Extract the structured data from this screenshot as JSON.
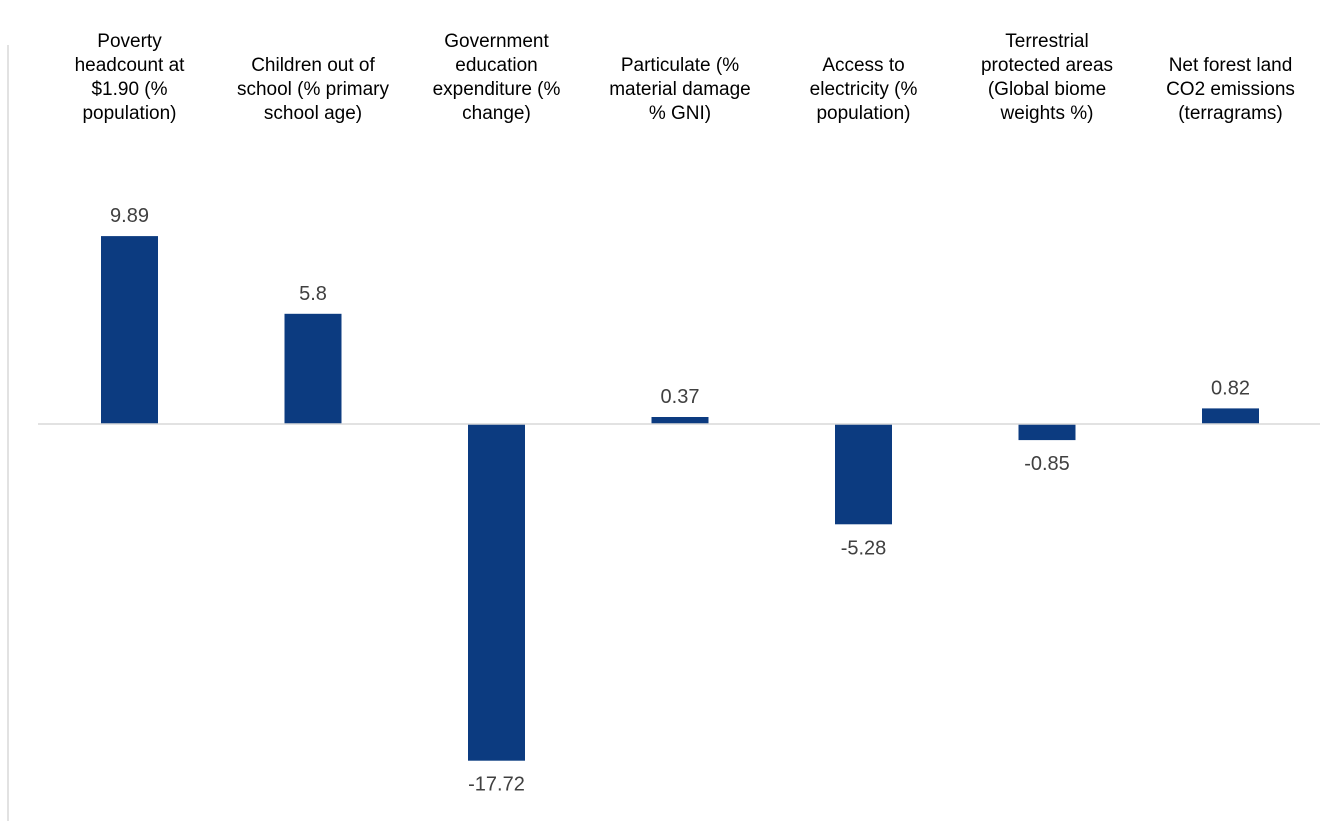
{
  "chart_data": {
    "type": "bar",
    "categories": [
      [
        "Poverty",
        "headcount at",
        "$1.90 (%",
        "population)"
      ],
      [
        "Children out of",
        "school (% primary",
        "school age)"
      ],
      [
        "Government",
        "education",
        "expenditure (%",
        "change)"
      ],
      [
        "Particulate (%",
        "material damage",
        "% GNI)"
      ],
      [
        "Access to",
        "electricity (%",
        "population)"
      ],
      [
        "Terrestrial",
        "protected areas",
        "(Global biome",
        "weights %)"
      ],
      [
        "Net forest land",
        "CO2 emissions",
        "(terragrams)"
      ]
    ],
    "values": [
      9.89,
      5.8,
      -17.72,
      0.37,
      -5.28,
      -0.85,
      0.82
    ],
    "data_labels": [
      "9.89",
      "5.8",
      "-17.72",
      "0.37",
      "-5.28",
      "-0.85",
      "0.82"
    ],
    "title": "",
    "xlabel": "",
    "ylabel": "",
    "ylim": [
      -20,
      12
    ],
    "grid": false,
    "legend": "none",
    "colors": {
      "bar": "#0C3B80",
      "axis": "#D9D9D9",
      "text": "#000000",
      "data_label": "#404040"
    }
  }
}
